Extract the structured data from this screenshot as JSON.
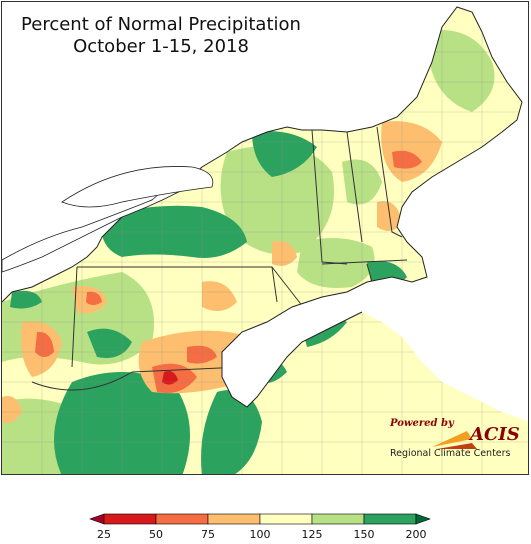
{
  "title": "Percent of Normal Precipitation",
  "subtitle": "October 1-15, 2018",
  "logo": {
    "powered_by": "Powered by",
    "name": "ACIS",
    "org": "Regional Climate Centers"
  },
  "legend": {
    "ticks": [
      "25",
      "50",
      "75",
      "100",
      "125",
      "150",
      "200"
    ],
    "bins": [
      {
        "range": "25-50",
        "color": "#d7191c"
      },
      {
        "range": "50-75",
        "color": "#f46d43"
      },
      {
        "range": "75-100",
        "color": "#fdbf6f"
      },
      {
        "range": "100-125",
        "color": "#ffffbf"
      },
      {
        "range": "125-150",
        "color": "#b8e186"
      },
      {
        "range": "150-200",
        "color": "#2ca25f"
      }
    ],
    "below_color": "#a50026",
    "above_color": "#006837"
  },
  "colors": {
    "water": "#ffffff",
    "outside": "#ffffff",
    "state_border": "#333333",
    "county_border": "#8a8a8a"
  }
}
